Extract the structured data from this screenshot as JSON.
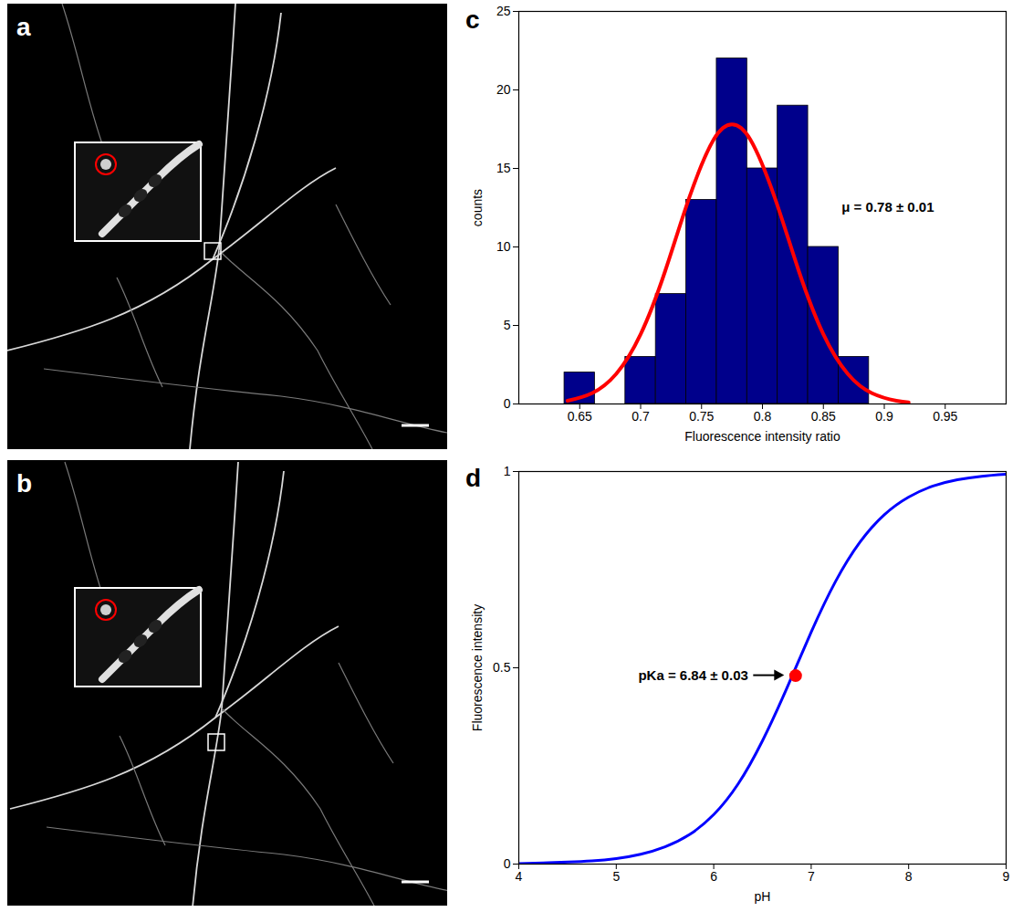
{
  "chart_data": [
    {
      "type": "image",
      "panel": "a"
    },
    {
      "type": "image",
      "panel": "b"
    },
    {
      "type": "histogram",
      "panel": "c",
      "bins": [
        0.6375,
        0.6625,
        0.6875,
        0.7125,
        0.7375,
        0.7625,
        0.7875,
        0.8125,
        0.8375,
        0.8625,
        0.8875
      ],
      "counts": [
        2,
        0,
        3,
        7,
        13,
        22,
        15,
        19,
        10,
        3
      ],
      "color": "#00008b",
      "fit": {
        "x": [
          0.64,
          0.66,
          0.68,
          0.7,
          0.72,
          0.74,
          0.76,
          0.775,
          0.79,
          0.81,
          0.83,
          0.85,
          0.87,
          0.89,
          0.91,
          0.92
        ],
        "values": [
          0.2,
          0.68,
          1.92,
          4.44,
          8.43,
          13.16,
          16.84,
          17.8,
          16.84,
          13.16,
          8.43,
          4.44,
          1.92,
          0.68,
          0.2,
          0.1
        ],
        "color": "#ff0000"
      },
      "xlabel": "Fluorescence intensity ratio",
      "ylabel": "counts",
      "xlim": [
        0.6,
        1.0
      ],
      "ylim": [
        0,
        25
      ],
      "xticks": [
        0.65,
        0.7,
        0.75,
        0.8,
        0.85,
        0.9,
        0.95
      ],
      "yticks": [
        0,
        5,
        10,
        15,
        20,
        25
      ],
      "grid": false,
      "annotations": [
        {
          "text": "μ = 0.78 ± 0.01",
          "x": 0.865,
          "y": 12.5
        }
      ]
    },
    {
      "type": "line",
      "panel": "d",
      "x": [
        4,
        4.25,
        4.5,
        4.75,
        5,
        5.25,
        5.5,
        5.75,
        6,
        6.25,
        6.5,
        6.75,
        7,
        7.25,
        7.5,
        7.75,
        8,
        8.25,
        8.5,
        8.75,
        9
      ],
      "values": [
        0.001,
        0.003,
        0.005,
        0.008,
        0.014,
        0.025,
        0.044,
        0.075,
        0.126,
        0.204,
        0.314,
        0.448,
        0.591,
        0.72,
        0.82,
        0.89,
        0.935,
        0.963,
        0.979,
        0.988,
        0.993
      ],
      "color": "#0000ff",
      "xlabel": "pH",
      "ylabel": "Fluorescence intensity",
      "xlim": [
        4,
        9
      ],
      "ylim": [
        0,
        1
      ],
      "xticks": [
        4,
        5,
        6,
        7,
        8,
        9
      ],
      "yticks": [
        0,
        0.5,
        1
      ],
      "grid": false,
      "points": [
        {
          "x": 6.84,
          "y": 0.48,
          "color": "#ff0000",
          "text": "pKa = 6.84 ± 0.03"
        }
      ]
    }
  ]
}
